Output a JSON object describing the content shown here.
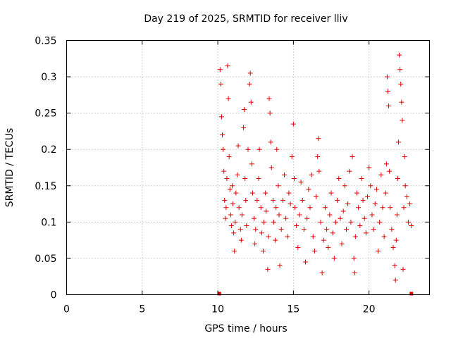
{
  "chart_data": {
    "type": "scatter",
    "title": "Day 219 of 2025, SRMTID for receiver lliv",
    "xlabel": "GPS time / hours",
    "ylabel": "SRMTID / TECUs",
    "xlim": [
      0,
      24
    ],
    "ylim": [
      0,
      0.35
    ],
    "x_ticks": [
      0,
      5,
      10,
      15,
      20
    ],
    "x_tick_labels": [
      "0",
      "5",
      "10",
      "15",
      "20"
    ],
    "y_ticks": [
      0,
      0.05,
      0.1,
      0.15,
      0.2,
      0.25,
      0.3,
      0.35
    ],
    "y_tick_labels": [
      "0",
      "0.05",
      "0.1",
      "0.15",
      "0.2",
      "0.25",
      "0.3",
      "0.35"
    ],
    "grid": true,
    "marker": "+",
    "color": "#e00000",
    "data_coverage_hours": [
      10.1,
      22.8
    ],
    "series": [
      {
        "name": "SRMTID",
        "points": [
          [
            10.15,
            0.31
          ],
          [
            10.2,
            0.29
          ],
          [
            10.25,
            0.245
          ],
          [
            10.3,
            0.22
          ],
          [
            10.35,
            0.2
          ],
          [
            10.4,
            0.17
          ],
          [
            10.45,
            0.13
          ],
          [
            10.5,
            0.105
          ],
          [
            10.55,
            0.12
          ],
          [
            10.6,
            0.16
          ],
          [
            10.65,
            0.315
          ],
          [
            10.7,
            0.27
          ],
          [
            10.75,
            0.19
          ],
          [
            10.8,
            0.145
          ],
          [
            10.85,
            0.11
          ],
          [
            10.9,
            0.095
          ],
          [
            10.95,
            0.15
          ],
          [
            11.0,
            0.125
          ],
          [
            11.05,
            0.085
          ],
          [
            11.1,
            0.06
          ],
          [
            11.15,
            0.1
          ],
          [
            11.2,
            0.14
          ],
          [
            11.3,
            0.165
          ],
          [
            11.35,
            0.205
          ],
          [
            11.4,
            0.12
          ],
          [
            11.5,
            0.09
          ],
          [
            11.55,
            0.075
          ],
          [
            11.6,
            0.11
          ],
          [
            11.7,
            0.23
          ],
          [
            11.75,
            0.255
          ],
          [
            11.8,
            0.16
          ],
          [
            11.85,
            0.13
          ],
          [
            11.9,
            0.095
          ],
          [
            12.0,
            0.2
          ],
          [
            12.1,
            0.29
          ],
          [
            12.15,
            0.305
          ],
          [
            12.2,
            0.265
          ],
          [
            12.25,
            0.18
          ],
          [
            12.3,
            0.14
          ],
          [
            12.4,
            0.105
          ],
          [
            12.45,
            0.07
          ],
          [
            12.5,
            0.09
          ],
          [
            12.6,
            0.13
          ],
          [
            12.7,
            0.16
          ],
          [
            12.75,
            0.2
          ],
          [
            12.85,
            0.12
          ],
          [
            12.9,
            0.085
          ],
          [
            13.0,
            0.06
          ],
          [
            13.05,
            0.1
          ],
          [
            13.15,
            0.14
          ],
          [
            13.2,
            0.115
          ],
          [
            13.3,
            0.035
          ],
          [
            13.35,
            0.08
          ],
          [
            13.4,
            0.27
          ],
          [
            13.45,
            0.25
          ],
          [
            13.5,
            0.21
          ],
          [
            13.55,
            0.175
          ],
          [
            13.65,
            0.13
          ],
          [
            13.7,
            0.1
          ],
          [
            13.8,
            0.075
          ],
          [
            13.85,
            0.12
          ],
          [
            13.9,
            0.2
          ],
          [
            14.0,
            0.15
          ],
          [
            14.05,
            0.11
          ],
          [
            14.1,
            0.04
          ],
          [
            14.2,
            0.09
          ],
          [
            14.3,
            0.13
          ],
          [
            14.4,
            0.165
          ],
          [
            14.5,
            0.105
          ],
          [
            14.6,
            0.08
          ],
          [
            14.7,
            0.14
          ],
          [
            14.8,
            0.125
          ],
          [
            14.9,
            0.19
          ],
          [
            15.0,
            0.235
          ],
          [
            15.05,
            0.16
          ],
          [
            15.1,
            0.12
          ],
          [
            15.2,
            0.095
          ],
          [
            15.3,
            0.065
          ],
          [
            15.4,
            0.11
          ],
          [
            15.5,
            0.155
          ],
          [
            15.6,
            0.13
          ],
          [
            15.7,
            0.09
          ],
          [
            15.8,
            0.045
          ],
          [
            15.9,
            0.105
          ],
          [
            16.0,
            0.145
          ],
          [
            16.1,
            0.12
          ],
          [
            16.2,
            0.165
          ],
          [
            16.3,
            0.08
          ],
          [
            16.4,
            0.06
          ],
          [
            16.5,
            0.135
          ],
          [
            16.6,
            0.19
          ],
          [
            16.65,
            0.215
          ],
          [
            16.7,
            0.17
          ],
          [
            16.8,
            0.1
          ],
          [
            16.9,
            0.03
          ],
          [
            17.0,
            0.075
          ],
          [
            17.1,
            0.12
          ],
          [
            17.2,
            0.09
          ],
          [
            17.3,
            0.065
          ],
          [
            17.4,
            0.11
          ],
          [
            17.5,
            0.14
          ],
          [
            17.6,
            0.085
          ],
          [
            17.7,
            0.05
          ],
          [
            17.8,
            0.1
          ],
          [
            17.9,
            0.13
          ],
          [
            18.0,
            0.16
          ],
          [
            18.1,
            0.105
          ],
          [
            18.2,
            0.07
          ],
          [
            18.3,
            0.115
          ],
          [
            18.4,
            0.15
          ],
          [
            18.5,
            0.09
          ],
          [
            18.6,
            0.125
          ],
          [
            18.7,
            0.17
          ],
          [
            18.8,
            0.1
          ],
          [
            18.9,
            0.19
          ],
          [
            19.0,
            0.05
          ],
          [
            19.05,
            0.03
          ],
          [
            19.1,
            0.08
          ],
          [
            19.2,
            0.14
          ],
          [
            19.3,
            0.12
          ],
          [
            19.4,
            0.095
          ],
          [
            19.5,
            0.16
          ],
          [
            19.6,
            0.13
          ],
          [
            19.7,
            0.105
          ],
          [
            19.8,
            0.085
          ],
          [
            19.9,
            0.135
          ],
          [
            20.0,
            0.175
          ],
          [
            20.1,
            0.15
          ],
          [
            20.2,
            0.11
          ],
          [
            20.3,
            0.09
          ],
          [
            20.4,
            0.125
          ],
          [
            20.5,
            0.145
          ],
          [
            20.6,
            0.06
          ],
          [
            20.7,
            0.1
          ],
          [
            20.8,
            0.165
          ],
          [
            20.9,
            0.12
          ],
          [
            21.0,
            0.08
          ],
          [
            21.1,
            0.14
          ],
          [
            21.15,
            0.18
          ],
          [
            21.2,
            0.3
          ],
          [
            21.25,
            0.28
          ],
          [
            21.3,
            0.26
          ],
          [
            21.35,
            0.17
          ],
          [
            21.4,
            0.12
          ],
          [
            21.5,
            0.09
          ],
          [
            21.6,
            0.065
          ],
          [
            21.7,
            0.04
          ],
          [
            21.75,
            0.02
          ],
          [
            21.8,
            0.075
          ],
          [
            21.85,
            0.11
          ],
          [
            21.9,
            0.16
          ],
          [
            21.95,
            0.21
          ],
          [
            22.0,
            0.33
          ],
          [
            22.05,
            0.31
          ],
          [
            22.1,
            0.29
          ],
          [
            22.15,
            0.265
          ],
          [
            22.2,
            0.24
          ],
          [
            22.25,
            0.035
          ],
          [
            22.3,
            0.12
          ],
          [
            22.35,
            0.19
          ],
          [
            22.4,
            0.15
          ],
          [
            22.5,
            0.135
          ],
          [
            22.6,
            0.1
          ],
          [
            22.7,
            0.125
          ],
          [
            22.8,
            0.095
          ]
        ]
      }
    ]
  }
}
